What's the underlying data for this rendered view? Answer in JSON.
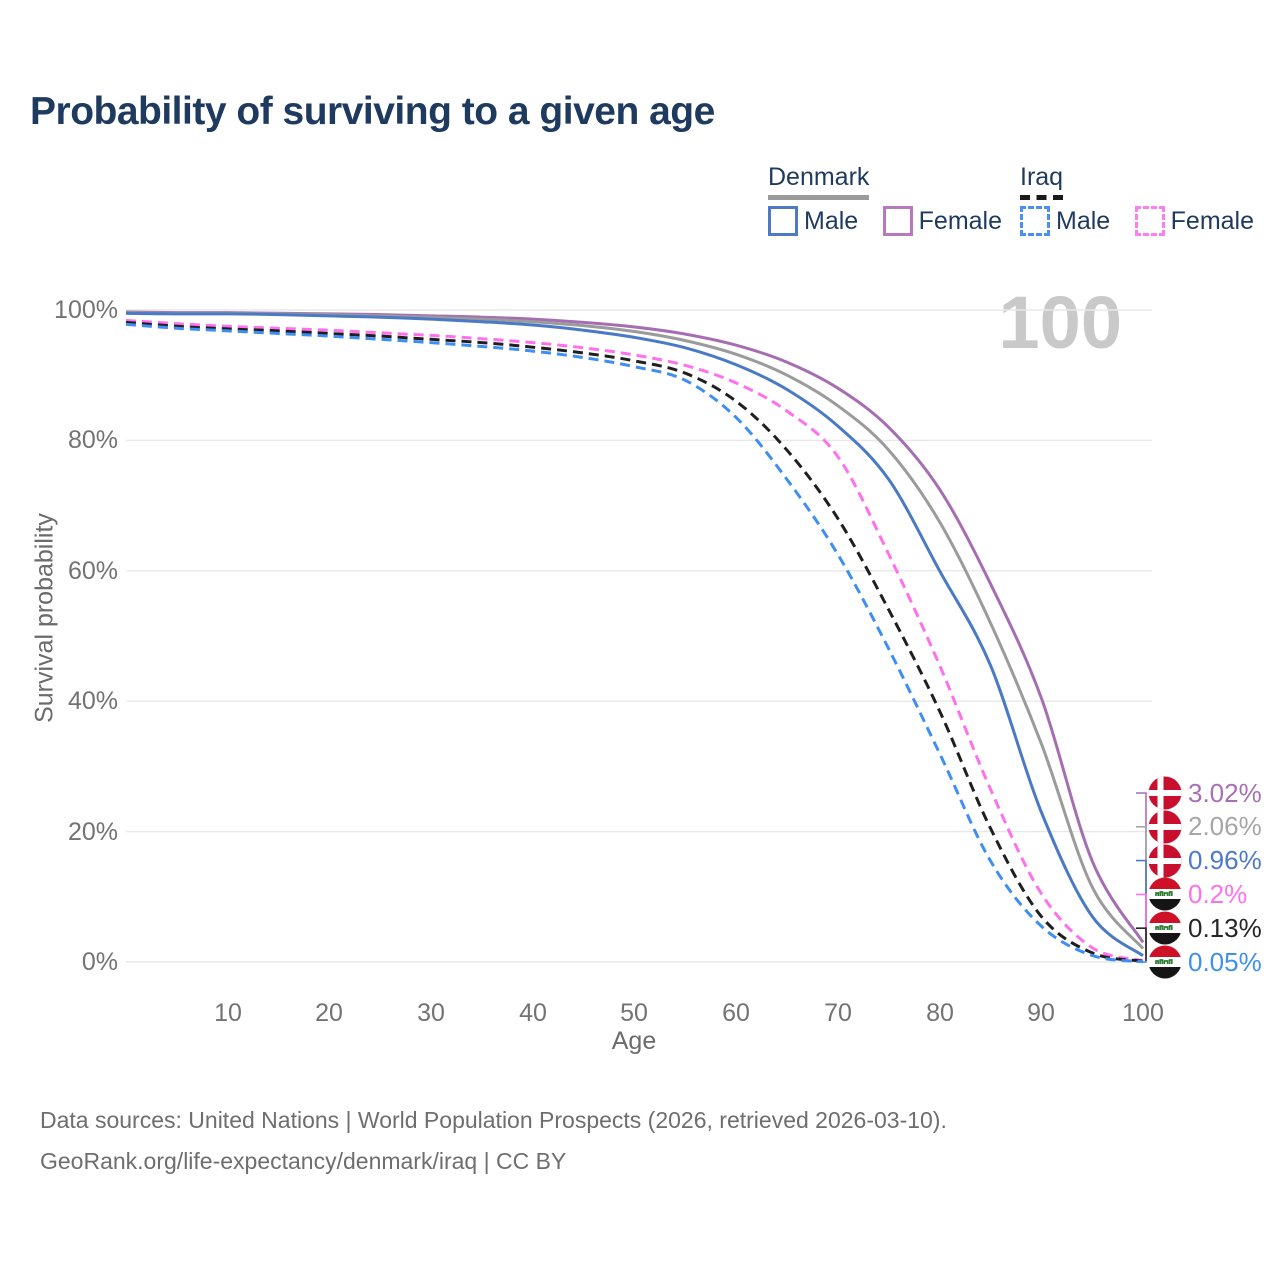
{
  "title": "Probability of surviving to a given age",
  "watermark": "100",
  "legend": {
    "groups": [
      {
        "country": "Denmark",
        "underline": {
          "style": "solid",
          "color": "#9b9b9b"
        },
        "items": [
          {
            "label": "Male",
            "color": "#4d7ac7",
            "dash": false
          },
          {
            "label": "Female",
            "color": "#b778c0",
            "dash": false
          }
        ]
      },
      {
        "country": "Iraq",
        "underline": {
          "style": "dashed",
          "color": "#1a1a1a"
        },
        "items": [
          {
            "label": "Male",
            "color": "#4b8ff2",
            "dash": true
          },
          {
            "label": "Female",
            "color": "#ff7df0",
            "dash": true
          }
        ]
      }
    ]
  },
  "end_labels": [
    {
      "value": "3.02%",
      "color": "#a96fb4",
      "flag": "denmark"
    },
    {
      "value": "2.06%",
      "color": "#a6a6a6",
      "flag": "denmark"
    },
    {
      "value": "0.96%",
      "color": "#4d7ac8",
      "flag": "denmark"
    },
    {
      "value": "0.2%",
      "color": "#ff70ed",
      "flag": "iraq"
    },
    {
      "value": "0.13%",
      "color": "#262626",
      "flag": "iraq"
    },
    {
      "value": "0.05%",
      "color": "#4090f0",
      "flag": "iraq"
    }
  ],
  "source": {
    "line1": "Data sources: United Nations | World Population Prospects (2026, retrieved 2026-03-10).",
    "line2": "GeoRank.org/life-expectancy/denmark/iraq | CC BY"
  },
  "chart_data": {
    "type": "line",
    "title": "Probability of surviving to a given age",
    "xlabel": "Age",
    "ylabel": "Survival probability",
    "xlim": [
      0,
      100
    ],
    "ylim": [
      0,
      100
    ],
    "grid": "horizontal",
    "x_tick_labels": [
      "10",
      "20",
      "30",
      "40",
      "50",
      "60",
      "70",
      "80",
      "90",
      "100"
    ],
    "x_tick_values": [
      10,
      20,
      30,
      40,
      50,
      60,
      70,
      80,
      90,
      100
    ],
    "y_tick_labels": [
      "0%",
      "20%",
      "40%",
      "60%",
      "80%",
      "100%"
    ],
    "y_tick_values": [
      0,
      20,
      40,
      60,
      80,
      100
    ],
    "x": [
      0,
      5,
      10,
      15,
      20,
      25,
      30,
      35,
      40,
      45,
      50,
      55,
      60,
      65,
      70,
      75,
      80,
      85,
      90,
      95,
      100
    ],
    "series": [
      {
        "name": "Denmark Female",
        "color": "#a56eb2",
        "style": "solid",
        "values": [
          99.7,
          99.6,
          99.6,
          99.5,
          99.4,
          99.3,
          99.1,
          98.9,
          98.6,
          98.1,
          97.4,
          96.3,
          94.6,
          92.0,
          88.0,
          82.0,
          72.5,
          58.0,
          40.5,
          15.5,
          3.02
        ],
        "end_label": "3.02%"
      },
      {
        "name": "Denmark Both sexes",
        "color": "#9b9b9b",
        "style": "solid",
        "values": [
          99.6,
          99.5,
          99.5,
          99.4,
          99.3,
          99.1,
          98.9,
          98.6,
          98.2,
          97.6,
          96.7,
          95.3,
          93.2,
          90.0,
          85.3,
          78.5,
          67.5,
          52.0,
          33.5,
          11.5,
          2.06
        ],
        "end_label": "2.06%"
      },
      {
        "name": "Denmark Male",
        "color": "#4a79c5",
        "style": "solid",
        "values": [
          99.5,
          99.4,
          99.4,
          99.3,
          99.1,
          98.9,
          98.6,
          98.2,
          97.7,
          96.9,
          95.8,
          94.2,
          91.6,
          87.8,
          82.2,
          74.0,
          60.0,
          45.5,
          23.0,
          7.0,
          0.96
        ],
        "end_label": "0.96%"
      },
      {
        "name": "Iraq Female",
        "color": "#ff70ed",
        "style": "dashed",
        "values": [
          98.4,
          97.9,
          97.5,
          97.2,
          96.9,
          96.5,
          96.1,
          95.6,
          95.0,
          94.2,
          93.1,
          91.5,
          88.8,
          84.5,
          77.5,
          62.5,
          45.5,
          26.5,
          10.5,
          2.2,
          0.2
        ],
        "end_label": "0.2%"
      },
      {
        "name": "Iraq Both sexes",
        "color": "#1f1f1f",
        "style": "dashed",
        "values": [
          98.1,
          97.5,
          97.1,
          96.8,
          96.4,
          96.0,
          95.5,
          95.0,
          94.3,
          93.4,
          92.2,
          90.3,
          86.0,
          78.5,
          68.0,
          54.0,
          38.5,
          20.5,
          7.0,
          1.4,
          0.13
        ],
        "end_label": "0.13%"
      },
      {
        "name": "Iraq Male",
        "color": "#3f8ef2",
        "style": "dashed",
        "values": [
          97.8,
          97.2,
          96.8,
          96.4,
          96.0,
          95.5,
          95.0,
          94.4,
          93.7,
          92.7,
          91.3,
          89.2,
          83.5,
          74.0,
          62.5,
          48.0,
          32.0,
          15.5,
          5.5,
          1.0,
          0.05
        ],
        "end_label": "0.05%"
      }
    ],
    "legend_position": "top-right"
  }
}
